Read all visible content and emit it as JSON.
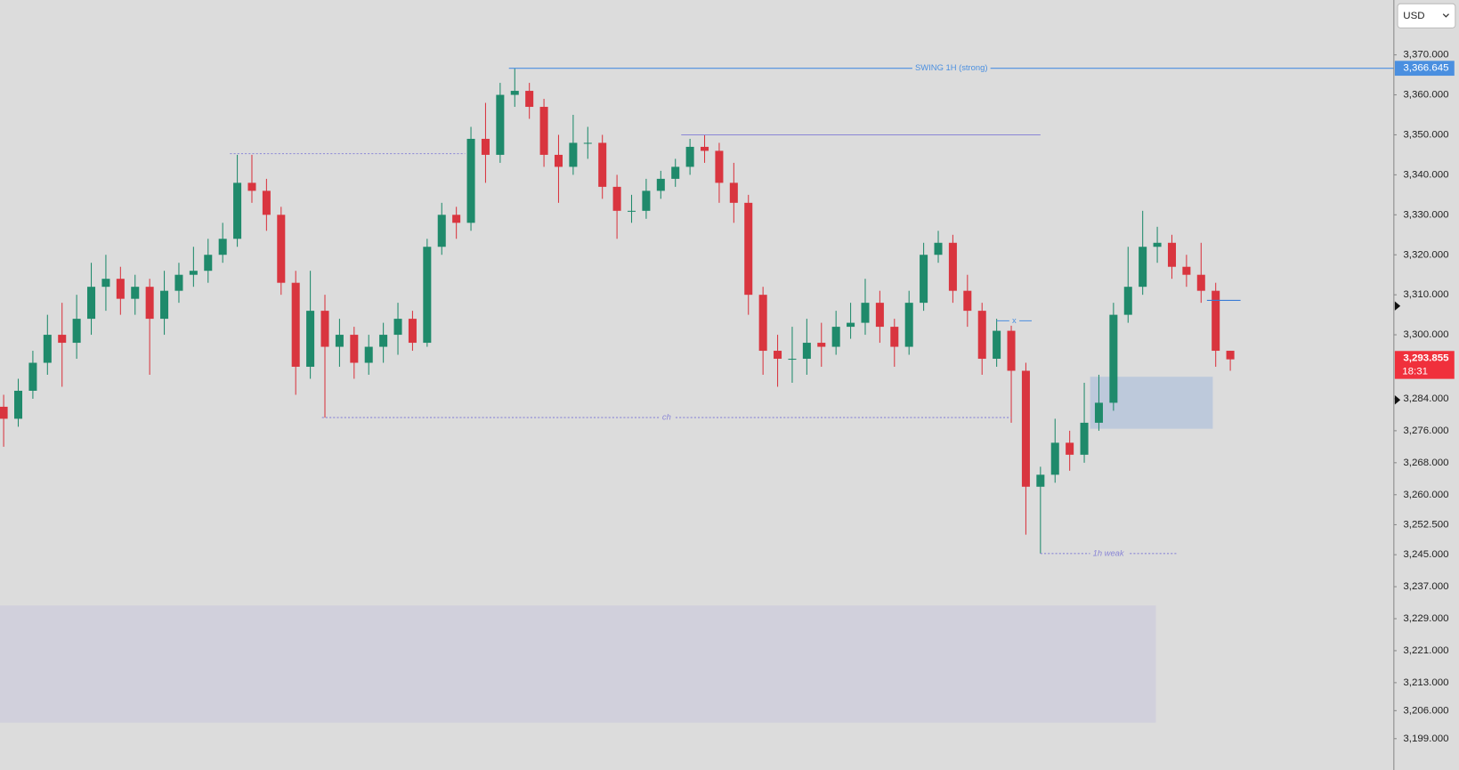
{
  "chart_data": {
    "type": "candlestick",
    "currency": "USD",
    "up_color": "#1f8a6b",
    "down_color": "#d9353f",
    "xlim": [
      -0.25,
      95.2
    ],
    "ylim": [
      3191.16,
      3383.72
    ],
    "yticks": [
      {
        "value": 3370,
        "label": "3,370.000"
      },
      {
        "value": 3360,
        "label": "3,360.000"
      },
      {
        "value": 3350,
        "label": "3,350.000"
      },
      {
        "value": 3340,
        "label": "3,340.000"
      },
      {
        "value": 3330,
        "label": "3,330.000"
      },
      {
        "value": 3320,
        "label": "3,320.000"
      },
      {
        "value": 3310,
        "label": "3,310.000"
      },
      {
        "value": 3300,
        "label": "3,300.000"
      },
      {
        "value": 3284,
        "label": "3,284.000"
      },
      {
        "value": 3276,
        "label": "3,276.000"
      },
      {
        "value": 3268,
        "label": "3,268.000"
      },
      {
        "value": 3260,
        "label": "3,260.000"
      },
      {
        "value": 3252.5,
        "label": "3,252.500"
      },
      {
        "value": 3245,
        "label": "3,245.000"
      },
      {
        "value": 3237,
        "label": "3,237.000"
      },
      {
        "value": 3229,
        "label": "3,229.000"
      },
      {
        "value": 3221,
        "label": "3,221.000"
      },
      {
        "value": 3213,
        "label": "3,213.000"
      },
      {
        "value": 3206,
        "label": "3,206.000"
      },
      {
        "value": 3199,
        "label": "3,199.000"
      }
    ],
    "open": [
      3282,
      3279,
      3286,
      3293,
      3300,
      3298,
      3304,
      3312,
      3314,
      3309,
      3312,
      3304,
      3311,
      3315,
      3316,
      3320,
      3324,
      3338,
      3336,
      3330,
      3313,
      3292,
      3306,
      3297,
      3300,
      3293,
      3297,
      3300,
      3304,
      3298,
      3322,
      3330,
      3328,
      3349,
      3345,
      3360,
      3361,
      3357,
      3345,
      3342,
      3348,
      3348,
      3337,
      3331,
      3331,
      3336,
      3339,
      3342,
      3347,
      3346,
      3338,
      3333,
      3310,
      3296,
      3294,
      3294,
      3298,
      3297,
      3302,
      3303,
      3308,
      3302,
      3297,
      3308,
      3320,
      3323,
      3311,
      3306,
      3294,
      3301,
      3291,
      3262,
      3265,
      3273,
      3270,
      3278,
      3283,
      3305,
      3312,
      3322,
      3323,
      3317,
      3315,
      3311,
      3296
    ],
    "high": [
      3285,
      3289,
      3296,
      3305,
      3308,
      3310,
      3318,
      3320,
      3317,
      3315,
      3314,
      3316,
      3318,
      3322,
      3324,
      3328,
      3345,
      3345,
      3339,
      3332,
      3316,
      3316,
      3310,
      3304,
      3302,
      3300,
      3303,
      3308,
      3306,
      3324,
      3333,
      3332,
      3352,
      3358,
      3363,
      3366.6,
      3363,
      3359,
      3350,
      3355,
      3352,
      3350,
      3340,
      3335,
      3339,
      3341,
      3344,
      3349,
      3350,
      3348,
      3343,
      3335,
      3312,
      3300,
      3302,
      3304,
      3303,
      3306,
      3308,
      3314,
      3311,
      3304,
      3311,
      3323,
      3326,
      3325,
      3315,
      3308,
      3304,
      3303,
      3293,
      3267,
      3279,
      3276,
      3288,
      3290,
      3308,
      3322,
      3331,
      3327,
      3325,
      3320,
      3323,
      3313,
      3296
    ],
    "low": [
      3272,
      3277,
      3284,
      3290,
      3287,
      3294,
      3300,
      3306,
      3305,
      3305,
      3290,
      3300,
      3308,
      3312,
      3313,
      3318,
      3322,
      3333,
      3326,
      3310,
      3285,
      3289,
      3279.3,
      3292,
      3289,
      3290,
      3293,
      3295,
      3296,
      3297,
      3320,
      3324,
      3326,
      3338,
      3343,
      3357,
      3354,
      3342,
      3333,
      3340,
      3344,
      3334,
      3324,
      3328,
      3329,
      3334,
      3337,
      3340,
      3343,
      3333,
      3328,
      3305,
      3290,
      3287,
      3288,
      3290,
      3292,
      3295,
      3299,
      3300,
      3298,
      3292,
      3295,
      3306,
      3318,
      3308,
      3302,
      3290,
      3292,
      3278,
      3250,
      3245.3,
      3263,
      3266,
      3268,
      3276,
      3281,
      3303,
      3310,
      3318,
      3314,
      3312,
      3308,
      3292,
      3291
    ],
    "close": [
      3279,
      3286,
      3293,
      3300,
      3298,
      3304,
      3312,
      3314,
      3309,
      3312,
      3304,
      3311,
      3315,
      3316,
      3320,
      3324,
      3338,
      3336,
      3330,
      3313,
      3292,
      3306,
      3297,
      3300,
      3293,
      3297,
      3300,
      3304,
      3298,
      3322,
      3330,
      3328,
      3349,
      3345,
      3360,
      3361,
      3357,
      3345,
      3342,
      3348,
      3348,
      3337,
      3331,
      3331,
      3336,
      3339,
      3342,
      3347,
      3346,
      3338,
      3333,
      3310,
      3296,
      3294,
      3294,
      3298,
      3297,
      3302,
      3303,
      3308,
      3302,
      3297,
      3308,
      3320,
      3323,
      3311,
      3306,
      3294,
      3301,
      3291,
      3262,
      3265,
      3273,
      3270,
      3278,
      3283,
      3305,
      3312,
      3322,
      3323,
      3317,
      3315,
      3311,
      3296,
      3293.855
    ],
    "last_price_label": "3,293.855",
    "countdown": "18:31",
    "lines": [
      {
        "label": "SWING 1H (strong)",
        "level": 3366.645,
        "level_label": "3,366.645",
        "x": [
          34.6,
          95.2
        ],
        "color": "#4a8fe0",
        "style": "solid"
      },
      {
        "level": 3350,
        "x": [
          46.4,
          71
        ],
        "color": "#8a86d6",
        "style": "solid"
      },
      {
        "level": 3345.3,
        "x": [
          15.5,
          31.6
        ],
        "color": "#8a86d6",
        "style": "dotted"
      },
      {
        "label": "ch",
        "level": 3279.3,
        "x": [
          21.8,
          69
        ],
        "color": "#8a86d6",
        "style": "dotted"
      },
      {
        "label": "1h weak",
        "level": 3245.3,
        "x": [
          71,
          80.3
        ],
        "color": "#8a86d6",
        "style": "dotted"
      },
      {
        "label": "x",
        "level": 3303.5,
        "x": [
          68,
          70.4
        ],
        "color": "#4a8fe0",
        "style": "solid"
      },
      {
        "level": 3308.6,
        "x": [
          82.4,
          84.7
        ],
        "color": "#3a7bd5",
        "style": "solid"
      }
    ],
    "boxes": [
      {
        "low": 3276.5,
        "high": 3289.5,
        "x": [
          74.4,
          82.8
        ],
        "color": "rgba(120,160,220,0.3)"
      },
      {
        "low": 3203,
        "high": 3232.3,
        "x": [
          -0.25,
          78.9
        ],
        "color": "rgba(190,185,220,0.35)"
      }
    ]
  }
}
